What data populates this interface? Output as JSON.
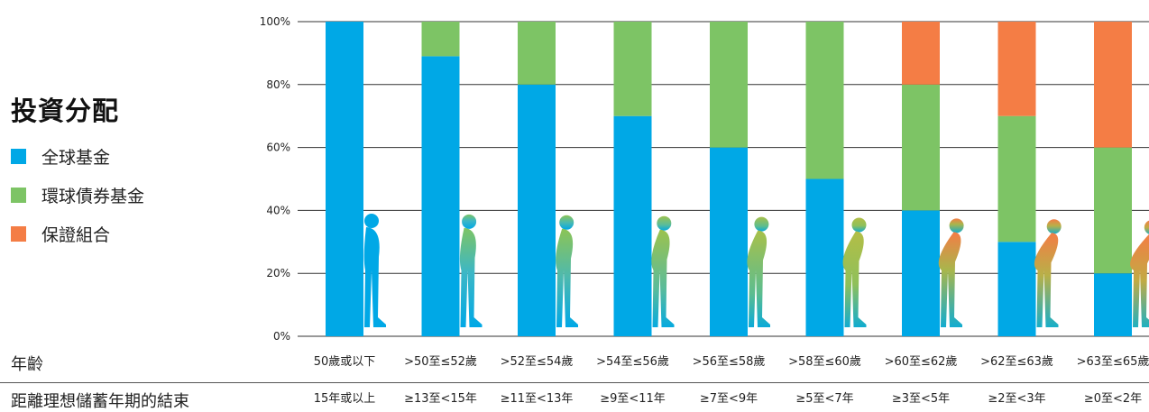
{
  "legend": {
    "title": "投資分配",
    "items": [
      {
        "label": "全球基金",
        "color": "#00a8e6"
      },
      {
        "label": "環球債券基金",
        "color": "#7dc465"
      },
      {
        "label": "保證組合",
        "color": "#f47d45"
      }
    ]
  },
  "rows": {
    "age_label": "年齡",
    "years_label": "距離理想儲蓄年期的結束"
  },
  "chart_data": {
    "type": "bar",
    "stacked": true,
    "categories": [
      "50歲或以下",
      ">50至≤52歲",
      ">52至≤54歲",
      ">54至≤56歲",
      ">56至≤58歲",
      ">58至≤60歲",
      ">60至≤62歲",
      ">62至≤63歲",
      ">63至≤65歲"
    ],
    "secondary_categories": [
      "15年或以上",
      "≥13至<15年",
      "≥11至<13年",
      "≥9至<11年",
      "≥7至<9年",
      "≥5至<7年",
      "≥3至<5年",
      "≥2至<3年",
      "≥0至<2年"
    ],
    "series": [
      {
        "name": "全球基金",
        "color": "#00a8e6",
        "values": [
          100,
          89,
          80,
          70,
          60,
          50,
          40,
          30,
          20
        ]
      },
      {
        "name": "環球債券基金",
        "color": "#7dc465",
        "values": [
          0,
          11,
          20,
          30,
          40,
          50,
          40,
          40,
          40
        ]
      },
      {
        "name": "保證組合",
        "color": "#f47d45",
        "values": [
          0,
          0,
          0,
          0,
          0,
          0,
          20,
          30,
          40
        ]
      }
    ],
    "yticks": [
      "0%",
      "20%",
      "40%",
      "60%",
      "80%",
      "100%"
    ],
    "ylim": [
      0,
      100
    ],
    "grid": true
  }
}
